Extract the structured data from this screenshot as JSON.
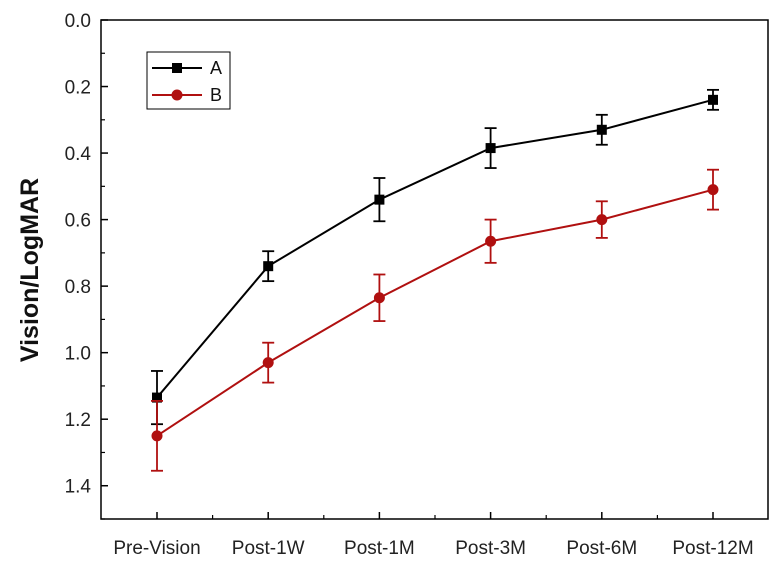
{
  "chart_data": {
    "type": "line",
    "title": "",
    "xlabel": "",
    "ylabel": "Vision/LogMAR",
    "categories": [
      "Pre-Vision",
      "Post-1W",
      "Post-1M",
      "Post-3M",
      "Post-6M",
      "Post-12M"
    ],
    "y_inverted": true,
    "ylim": [
      0.0,
      1.5
    ],
    "yticks": [
      "0.0",
      "0.2",
      "0.4",
      "0.6",
      "0.8",
      "1.0",
      "1.2",
      "1.4"
    ],
    "grid": false,
    "legend_position": "top-left",
    "series": [
      {
        "name": "A",
        "color": "#000000",
        "marker": "square",
        "values": [
          1.135,
          0.74,
          0.54,
          0.385,
          0.33,
          0.24
        ],
        "errors": [
          0.08,
          0.045,
          0.065,
          0.06,
          0.045,
          0.03
        ]
      },
      {
        "name": "B",
        "color": "#b01010",
        "marker": "circle",
        "values": [
          1.25,
          1.03,
          0.835,
          0.665,
          0.6,
          0.51
        ],
        "errors": [
          0.105,
          0.06,
          0.07,
          0.065,
          0.055,
          0.06
        ]
      }
    ]
  }
}
